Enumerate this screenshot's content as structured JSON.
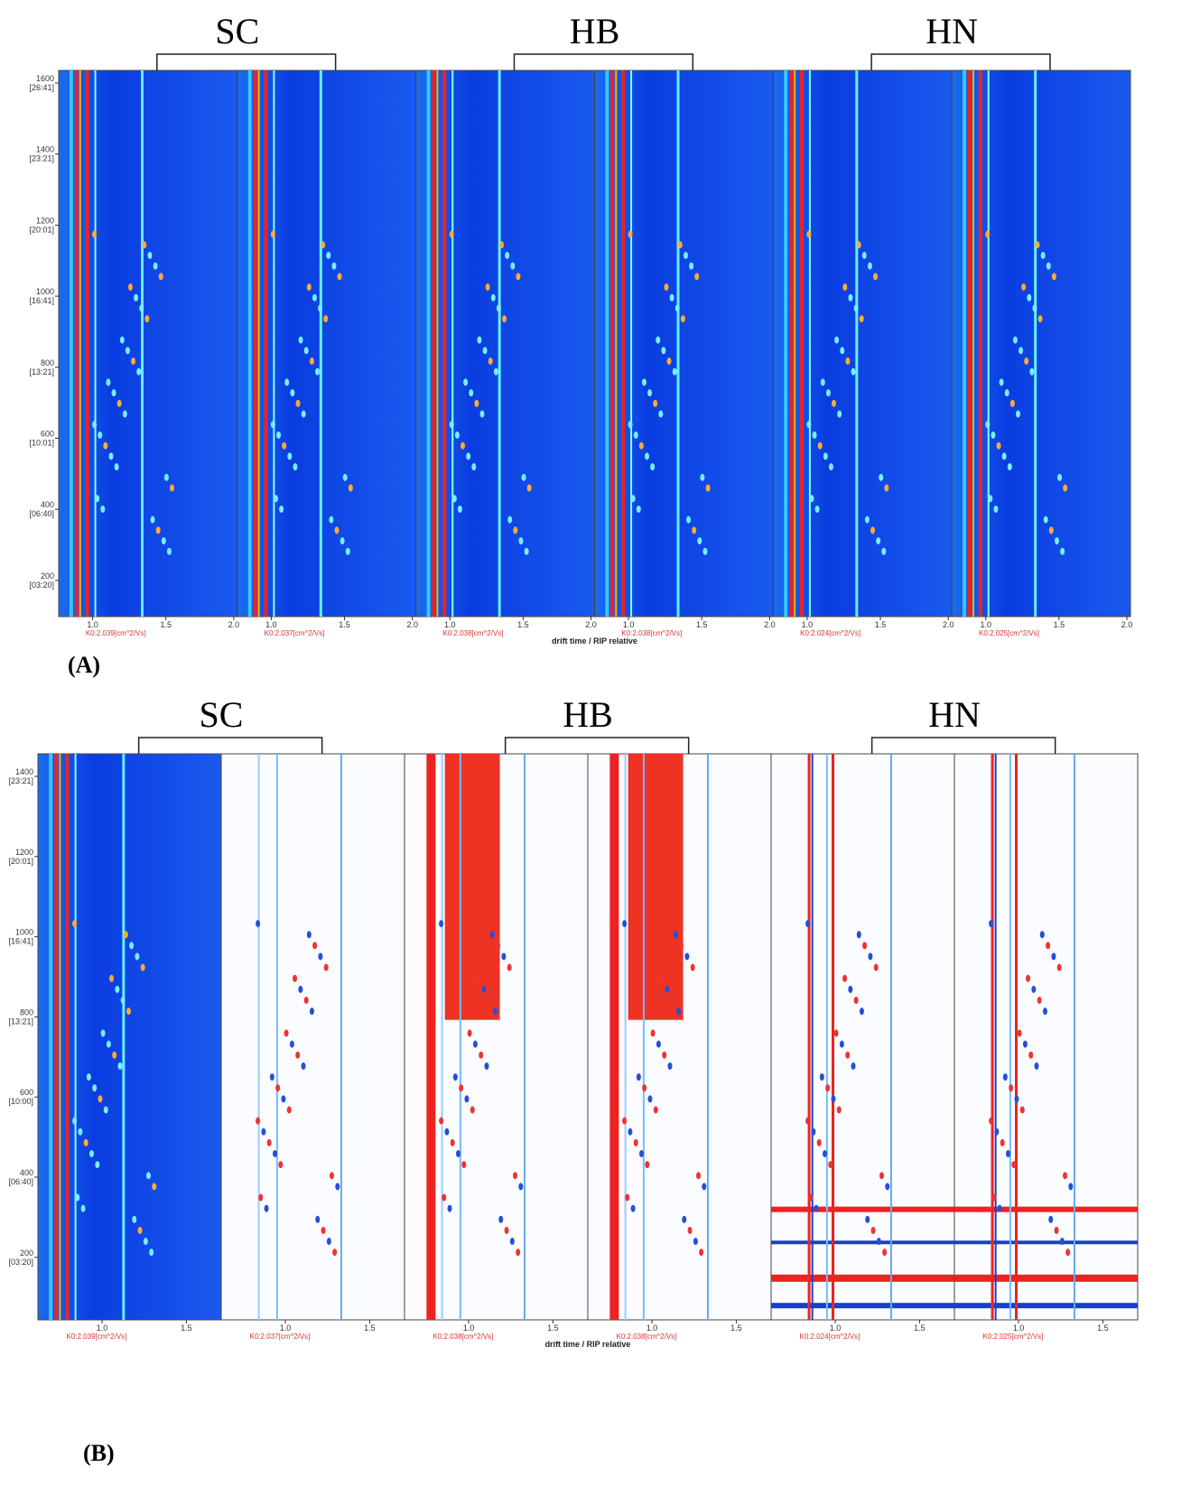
{
  "panels": [
    {
      "label": "(A)",
      "groups": [
        "SC",
        "HB",
        "HN"
      ],
      "yticks": [
        {
          "num": "1600",
          "time": "[26:41]"
        },
        {
          "num": "1400",
          "time": "[23:21]"
        },
        {
          "num": "1200",
          "time": "[20:01]"
        },
        {
          "num": "1000",
          "time": "[16:41]"
        },
        {
          "num": "800",
          "time": "[13:21]"
        },
        {
          "num": "600",
          "time": "[10:01]"
        },
        {
          "num": "400",
          "time": "[06:40]"
        },
        {
          "num": "200",
          "time": "[03:20]"
        }
      ],
      "subplots": [
        {
          "xticks": [
            "1.0",
            "1.5",
            "2.0"
          ],
          "k0": "K0:2.039[cm^2/Vs]"
        },
        {
          "xticks": [
            "1.0",
            "1.5",
            "2.0"
          ],
          "k0": "K0:2.037[cm^2/Vs]"
        },
        {
          "xticks": [
            "1.0",
            "1.5",
            "2.0"
          ],
          "k0": "K0:2.038[cm^2/Vs]"
        },
        {
          "xticks": [
            "1.0",
            "1.5",
            "2.0"
          ],
          "k0": "K0:2.038[cm^2/Vs]"
        },
        {
          "xticks": [
            "1.0",
            "1.5",
            "2.0"
          ],
          "k0": "K0:2.024[cm^2/Vs]"
        },
        {
          "xticks": [
            "1.0",
            "1.5",
            "2.0"
          ],
          "k0": "K0:2.025[cm^2/Vs]"
        }
      ],
      "xlabel": "drift time / RIP relative"
    },
    {
      "label": "(B)",
      "groups": [
        "SC",
        "HB",
        "HN"
      ],
      "yticks": [
        {
          "num": "1400",
          "time": "[23:21]"
        },
        {
          "num": "1200",
          "time": "[20:01]"
        },
        {
          "num": "1000",
          "time": "[16:41]"
        },
        {
          "num": "800",
          "time": "[13:21]"
        },
        {
          "num": "600",
          "time": "[10:00]"
        },
        {
          "num": "400",
          "time": "[06:40]"
        },
        {
          "num": "200",
          "time": "[03:20]"
        }
      ],
      "subplots": [
        {
          "xticks": [
            "1.0",
            "1.5"
          ],
          "k0": "K0:2.039[cm^2/Vs]"
        },
        {
          "xticks": [
            "1.0",
            "1.5"
          ],
          "k0": "K0:2.037[cm^2/Vs]"
        },
        {
          "xticks": [
            "1.0",
            "1.5"
          ],
          "k0": "K0:2.038[cm^2/Vs]"
        },
        {
          "xticks": [
            "1.0",
            "1.5"
          ],
          "k0": "K0:2.038[cm^2/Vs]"
        },
        {
          "xticks": [
            "1.0",
            "1.5"
          ],
          "k0": "K0:2.024[cm^2/Vs]"
        },
        {
          "xticks": [
            "1.0",
            "1.5"
          ],
          "k0": "K0:2.025[cm^2/Vs]"
        }
      ],
      "xlabel": "drift time / RIP relative"
    }
  ]
}
